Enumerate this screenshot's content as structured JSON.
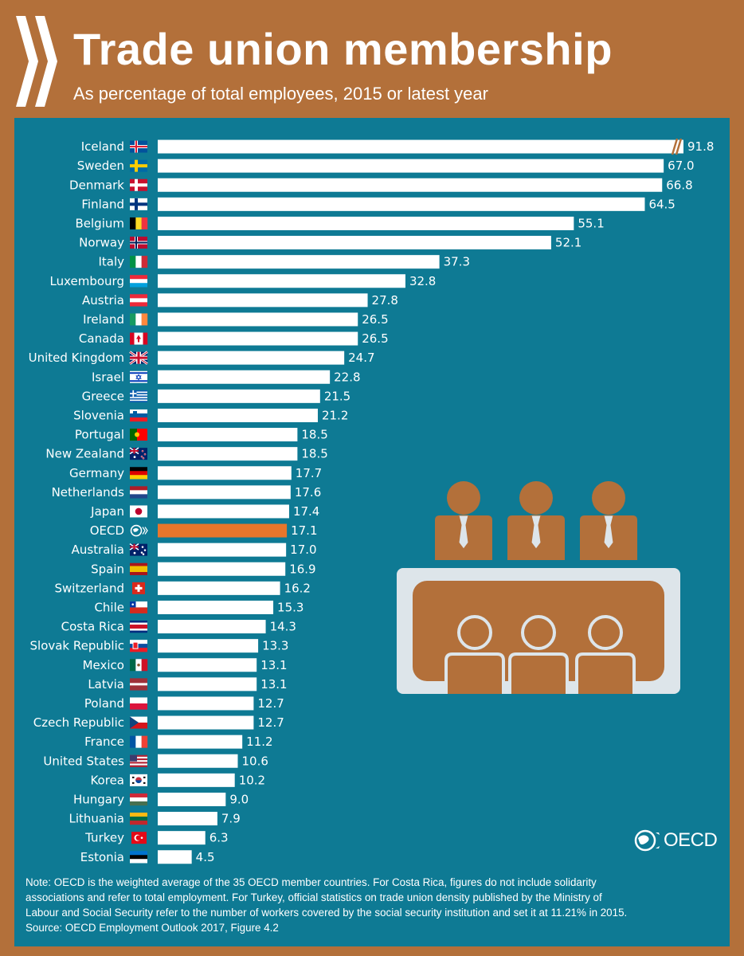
{
  "header": {
    "title": "Trade union membership",
    "subtitle": "As percentage of total employees, 2015 or latest year"
  },
  "colors": {
    "background": "#b3703a",
    "panel": "#0e7a94",
    "bar": "#ffffff",
    "highlight_bar": "#e8762c",
    "text": "#ffffff"
  },
  "chart_data": {
    "type": "bar",
    "orientation": "horizontal",
    "title": "Trade union membership",
    "subtitle": "As percentage of total employees, 2015 or latest year",
    "xlabel": "",
    "ylabel": "",
    "grid": false,
    "axis_break": {
      "category": "Iceland",
      "note": "bar truncated with break marks"
    },
    "highlight": "OECD",
    "categories": [
      "Iceland",
      "Sweden",
      "Denmark",
      "Finland",
      "Belgium",
      "Norway",
      "Italy",
      "Luxembourg",
      "Austria",
      "Ireland",
      "Canada",
      "United Kingdom",
      "Israel",
      "Greece",
      "Slovenia",
      "Portugal",
      "New Zealand",
      "Germany",
      "Netherlands",
      "Japan",
      "OECD",
      "Australia",
      "Spain",
      "Switzerland",
      "Chile",
      "Costa Rica",
      "Slovak Republic",
      "Mexico",
      "Latvia",
      "Poland",
      "Czech Republic",
      "France",
      "United States",
      "Korea",
      "Hungary",
      "Lithuania",
      "Turkey",
      "Estonia"
    ],
    "values": [
      91.8,
      67.0,
      66.8,
      64.5,
      55.1,
      52.1,
      37.3,
      32.8,
      27.8,
      26.5,
      26.5,
      24.7,
      22.8,
      21.5,
      21.2,
      18.5,
      18.5,
      17.7,
      17.6,
      17.4,
      17.1,
      17.0,
      16.9,
      16.2,
      15.3,
      14.3,
      13.3,
      13.1,
      13.1,
      12.7,
      12.7,
      11.2,
      10.6,
      10.2,
      9.0,
      7.9,
      6.3,
      4.5
    ],
    "value_labels": [
      "91.8",
      "67.0",
      "66.8",
      "64.5",
      "55.1",
      "52.1",
      "37.3",
      "32.8",
      "27.8",
      "26.5",
      "26.5",
      "24.7",
      "22.8",
      "21.5",
      "21.2",
      "18.5",
      "18.5",
      "17.7",
      "17.6",
      "17.4",
      "17.1",
      "17.0",
      "16.9",
      "16.2",
      "15.3",
      "14.3",
      "13.3",
      "13.1",
      "13.1",
      "12.7",
      "12.7",
      "11.2",
      "10.6",
      "10.2",
      "9.0",
      "7.9",
      "6.3",
      "4.5"
    ],
    "flags": [
      "iceland-flag",
      "sweden-flag",
      "denmark-flag",
      "finland-flag",
      "belgium-flag",
      "norway-flag",
      "italy-flag",
      "luxembourg-flag",
      "austria-flag",
      "ireland-flag",
      "canada-flag",
      "united-kingdom-flag",
      "israel-flag",
      "greece-flag",
      "slovenia-flag",
      "portugal-flag",
      "new-zealand-flag",
      "germany-flag",
      "netherlands-flag",
      "japan-flag",
      "oecd-logo-icon",
      "australia-flag",
      "spain-flag",
      "switzerland-flag",
      "chile-flag",
      "costa-rica-flag",
      "slovak-republic-flag",
      "mexico-flag",
      "latvia-flag",
      "poland-flag",
      "czech-republic-flag",
      "france-flag",
      "united-states-flag",
      "korea-flag",
      "hungary-flag",
      "lithuania-flag",
      "turkey-flag",
      "estonia-flag"
    ]
  },
  "note": {
    "lines": [
      "Note: OECD is the weighted average of the 35 OECD member countries. For Costa Rica, figures do not include solidarity",
      "associations and refer to total employment. For Turkey, official statistics on trade union density published by the Ministry of",
      "Labour and Social Security refer to the number of workers covered by the social security institution and set it at 11.21% in 2015.",
      "Source: OECD Employment Outlook 2017, Figure 4.2"
    ]
  },
  "logo": {
    "text": "OECD"
  },
  "illustration": {
    "icon": "meeting-table-icon"
  }
}
